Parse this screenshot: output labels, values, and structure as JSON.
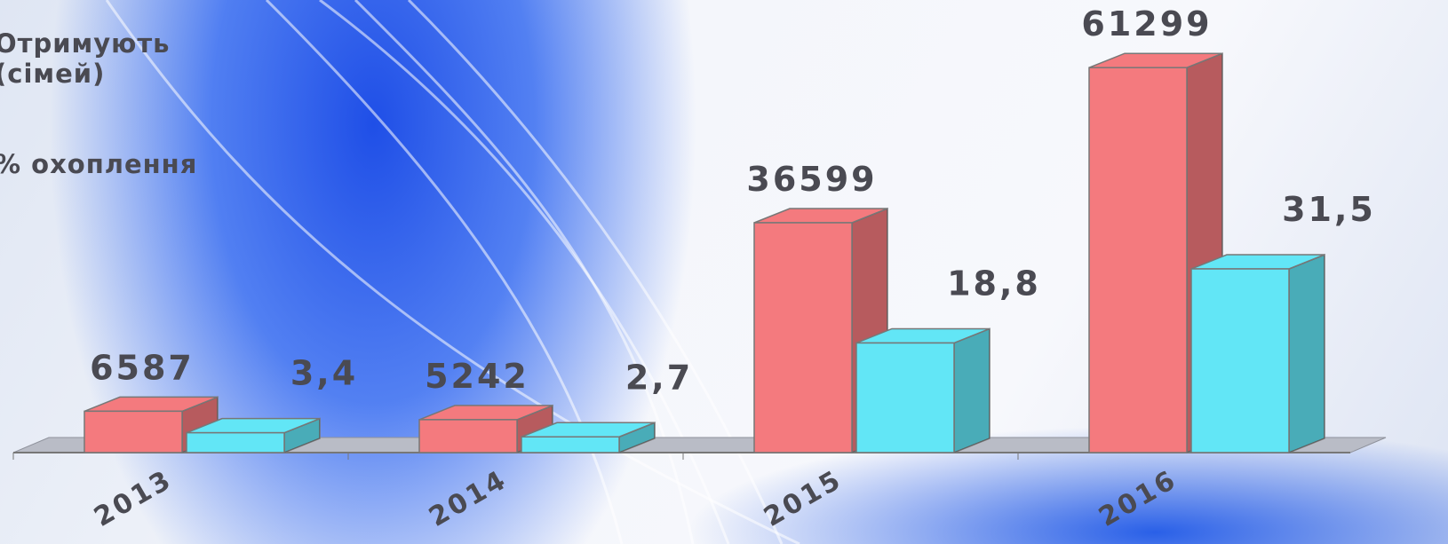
{
  "chart_data": {
    "type": "bar3d",
    "categories": [
      "2013",
      "2014",
      "2015",
      "2016"
    ],
    "series": [
      {
        "name": "Отримують (сімей)",
        "color": "#f47a7e",
        "values": [
          6587,
          5242,
          36599,
          61299
        ]
      },
      {
        "name": "% охоплення",
        "color": "#62e6f6",
        "values": [
          3.4,
          2.7,
          18.8,
          31.5
        ],
        "value_labels": [
          "3,4",
          "2,7",
          "18,8",
          "31,5"
        ],
        "axis": "y2"
      }
    ],
    "ylim": [
      0,
      65000
    ],
    "y2lim": [
      0,
      70
    ]
  }
}
